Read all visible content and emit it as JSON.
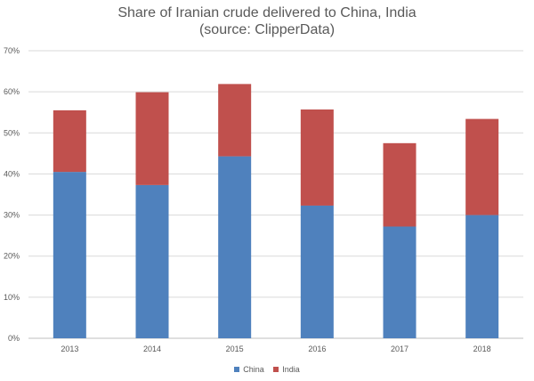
{
  "chart_data": {
    "type": "bar",
    "stacked": true,
    "title": "Share of Iranian crude delivered to China, India",
    "subtitle": "(source: ClipperData)",
    "categories": [
      "2013",
      "2014",
      "2015",
      "2016",
      "2017",
      "2018"
    ],
    "series": [
      {
        "name": "China",
        "color": "#4f81bd",
        "values": [
          40.5,
          37.3,
          44.3,
          32.3,
          27.2,
          30.0
        ]
      },
      {
        "name": "India",
        "color": "#c0504d",
        "values": [
          15.0,
          22.6,
          17.6,
          23.4,
          20.3,
          23.4
        ]
      }
    ],
    "ylim": [
      0,
      70
    ],
    "yticks": [
      "0%",
      "10%",
      "20%",
      "30%",
      "40%",
      "50%",
      "60%",
      "70%"
    ],
    "grid": true,
    "legend_position": "bottom"
  }
}
